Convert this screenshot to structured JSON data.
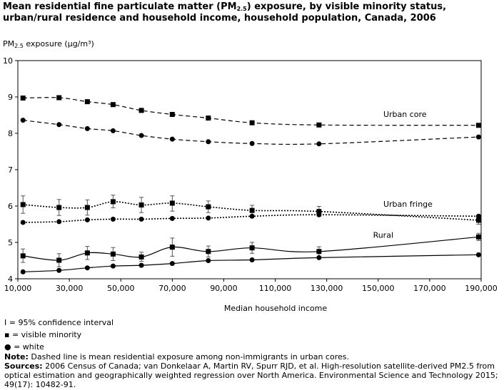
{
  "title_parts": {
    "a": "Mean residential fine particulate matter (PM",
    "sub": "2.5",
    "b": ") exposure, by visible minority status, urban/rural residence and household income, household population, Canada, 2006"
  },
  "ylabel_parts": {
    "a": "PM",
    "sub": "2.5",
    "b": " exposure (µg/m³)"
  },
  "legend": {
    "ci": "I = 95% confidence interval",
    "visible_minority": "▪ = visible minority",
    "white": "● = white"
  },
  "notes": {
    "note_label": "Note:",
    "note_text": " Dashed line is mean residential exposure among non-immigrants in urban cores.",
    "sources_label": "Sources:",
    "sources_text": " 2006 Census of Canada; van Donkelaar A, Martin RV, Spurr RJD, et al. High-resolution satellite-derived PM2.5 from optical estimation and geographically weighted regression over North America. Environmental Science and Technology 2015; 49(17): 10482-91."
  },
  "chart_data": {
    "type": "line",
    "title": "Mean residential fine particulate matter (PM2.5) exposure, by visible minority status, urban/rural residence and household income, household population, Canada, 2006",
    "xlabel": "Median household income",
    "ylabel": "PM2.5 exposure (µg/m³)",
    "xlim": [
      10000,
      190000
    ],
    "ylim": [
      4,
      10
    ],
    "xticks": [
      10000,
      30000,
      50000,
      70000,
      90000,
      110000,
      130000,
      150000,
      170000,
      190000
    ],
    "xtick_labels": [
      "10,000",
      "30,000",
      "50,000",
      "70,000",
      "90,000",
      "110,000",
      "130,000",
      "150,000",
      "170,000",
      "190,000"
    ],
    "yticks": [
      4,
      5,
      6,
      7,
      8,
      9,
      10
    ],
    "ytick_labels": [
      "4",
      "5",
      "6",
      "7",
      "8",
      "9",
      "10"
    ],
    "grid": false,
    "annotations": [
      {
        "text": "Urban core",
        "x": 152000,
        "y": 8.45
      },
      {
        "text": "Urban fringe",
        "x": 152000,
        "y": 5.98
      },
      {
        "text": "Rural",
        "x": 148000,
        "y": 5.13
      }
    ],
    "series": [
      {
        "group": "Urban core",
        "marker": "square",
        "line": "dashed",
        "color": "#000000",
        "x": [
          12000,
          26000,
          37000,
          47000,
          58000,
          70000,
          84000,
          101000,
          127000,
          189000
        ],
        "y": [
          8.97,
          8.98,
          8.87,
          8.79,
          8.63,
          8.52,
          8.42,
          8.29,
          8.23,
          8.22
        ]
      },
      {
        "group": "Urban core",
        "marker": "circle",
        "line": "dashed",
        "color": "#000000",
        "x": [
          12000,
          26000,
          37000,
          47000,
          58000,
          70000,
          84000,
          101000,
          127000,
          189000
        ],
        "y": [
          8.36,
          8.24,
          8.13,
          8.07,
          7.94,
          7.84,
          7.77,
          7.72,
          7.71,
          7.9
        ]
      },
      {
        "group": "Urban fringe",
        "marker": "square",
        "line": "dotted",
        "color": "#000000",
        "x": [
          12000,
          26000,
          37000,
          47000,
          58000,
          70000,
          84000,
          101000,
          127000,
          189000
        ],
        "y": [
          6.04,
          5.96,
          5.96,
          6.12,
          6.03,
          6.08,
          5.98,
          5.88,
          5.85,
          5.61
        ],
        "ci_low": [
          5.8,
          5.74,
          5.75,
          5.95,
          5.82,
          5.86,
          5.82,
          5.75,
          5.72,
          5.5
        ],
        "ci_high": [
          6.28,
          6.18,
          6.17,
          6.3,
          6.24,
          6.28,
          6.14,
          6.02,
          5.99,
          5.73
        ]
      },
      {
        "group": "Urban fringe",
        "marker": "circle",
        "line": "dotted",
        "color": "#000000",
        "x": [
          12000,
          26000,
          37000,
          47000,
          58000,
          70000,
          84000,
          101000,
          127000,
          189000
        ],
        "y": [
          5.55,
          5.57,
          5.62,
          5.64,
          5.64,
          5.66,
          5.67,
          5.72,
          5.76,
          5.72
        ]
      },
      {
        "group": "Rural",
        "marker": "square",
        "line": "solid",
        "color": "#000000",
        "x": [
          12000,
          26000,
          37000,
          47000,
          58000,
          70000,
          84000,
          101000,
          127000,
          189000
        ],
        "y": [
          4.63,
          4.51,
          4.71,
          4.68,
          4.6,
          4.87,
          4.75,
          4.85,
          4.75,
          5.15
        ],
        "ci_low": [
          4.45,
          4.33,
          4.53,
          4.5,
          4.48,
          4.62,
          4.6,
          4.7,
          4.62,
          5.05
        ],
        "ci_high": [
          4.82,
          4.69,
          4.89,
          4.86,
          4.73,
          5.12,
          4.9,
          5.0,
          4.88,
          5.25
        ]
      },
      {
        "group": "Rural",
        "marker": "circle",
        "line": "solid",
        "color": "#000000",
        "x": [
          12000,
          26000,
          37000,
          47000,
          58000,
          70000,
          84000,
          101000,
          127000,
          189000
        ],
        "y": [
          4.19,
          4.23,
          4.3,
          4.35,
          4.37,
          4.42,
          4.5,
          4.52,
          4.58,
          4.66
        ]
      }
    ]
  }
}
